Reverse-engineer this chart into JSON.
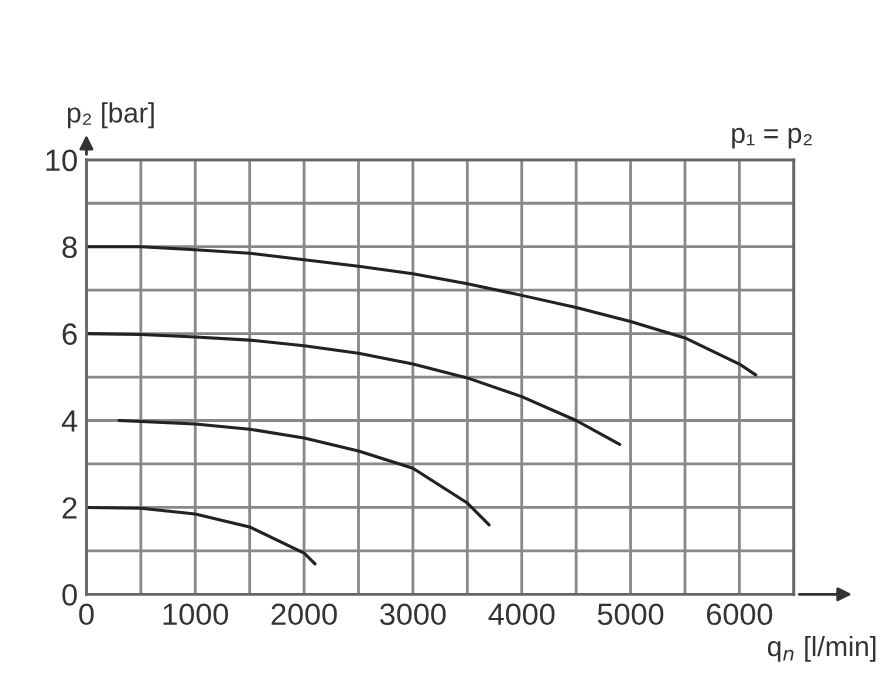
{
  "chart_data": {
    "type": "line",
    "xlabel": "q$_{n}$ [l/min]",
    "ylabel": "p₂ [bar]",
    "annotations": [
      "p₁ = p₂"
    ],
    "series": [
      {
        "color": "#222222",
        "x": [
          0,
          500,
          1000,
          1500,
          2000,
          2500,
          3000,
          3500,
          4000,
          4500,
          5000,
          5500,
          6000,
          6150
        ],
        "values": [
          8,
          8,
          7.93,
          7.85,
          7.7,
          7.55,
          7.38,
          7.15,
          6.88,
          6.6,
          6.28,
          5.9,
          5.3,
          5.05
        ]
      },
      {
        "color": "#222222",
        "x": [
          0,
          500,
          1000,
          1500,
          2000,
          2500,
          3000,
          3500,
          4000,
          4500,
          4900
        ],
        "values": [
          6,
          5.98,
          5.92,
          5.85,
          5.72,
          5.55,
          5.3,
          4.98,
          4.55,
          4.0,
          3.45
        ]
      },
      {
        "color": "#222222",
        "x": [
          300,
          1000,
          1500,
          2000,
          2500,
          3000,
          3500,
          3700
        ],
        "values": [
          4,
          3.92,
          3.8,
          3.6,
          3.3,
          2.9,
          2.1,
          1.6
        ]
      },
      {
        "color": "#222222",
        "x": [
          0,
          500,
          1000,
          1500,
          2000,
          2100
        ],
        "values": [
          2,
          1.98,
          1.85,
          1.55,
          0.95,
          0.7
        ]
      }
    ],
    "xlim": [
      0,
      6500
    ],
    "ylim": [
      0,
      10
    ],
    "xticks": [
      0,
      {
        "value": 500,
        "label": null
      },
      1000,
      {
        "value": 1500,
        "label": null
      },
      2000,
      {
        "value": 2500,
        "label": null
      },
      3000,
      {
        "value": 3500,
        "label": null
      },
      4000,
      {
        "value": 4500,
        "label": null
      },
      5000,
      {
        "value": 5500,
        "label": null
      },
      6000,
      {
        "value": 6500,
        "label": null
      }
    ],
    "yticks": [
      0,
      {
        "value": 1,
        "label": null
      },
      2,
      {
        "value": 3,
        "label": null
      },
      4,
      {
        "value": 5,
        "label": null
      },
      6,
      {
        "value": 7,
        "label": null
      },
      8,
      {
        "value": 9,
        "label": null
      },
      10
    ],
    "grid": true,
    "legend": false,
    "marker": "none",
    "line_style": "solid"
  }
}
